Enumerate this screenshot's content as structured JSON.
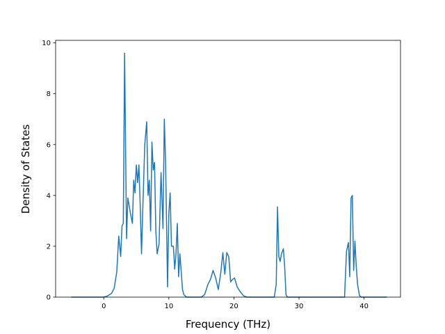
{
  "chart_data": {
    "type": "line",
    "title": "",
    "xlabel": "Frequency (THz)",
    "ylabel": "Density of States",
    "xlim": [
      -7.4,
      45.6
    ],
    "ylim": [
      0,
      10.1
    ],
    "xticks": [
      0,
      10,
      20,
      30,
      40
    ],
    "yticks": [
      0,
      2,
      4,
      6,
      8,
      10
    ],
    "grid": false,
    "series": [
      {
        "color": "#1f77b4",
        "x": [
          -5.0,
          0.0,
          0.6,
          1.2,
          1.6,
          2.0,
          2.3,
          2.6,
          2.8,
          3.0,
          3.2,
          3.5,
          3.7,
          3.9,
          4.1,
          4.4,
          4.6,
          4.8,
          5.0,
          5.2,
          5.4,
          5.6,
          5.8,
          6.0,
          6.3,
          6.6,
          6.8,
          7.0,
          7.2,
          7.4,
          7.6,
          7.8,
          8.0,
          8.2,
          8.5,
          8.8,
          9.1,
          9.3,
          9.5,
          9.8,
          10.0,
          10.2,
          10.4,
          10.7,
          10.9,
          11.1,
          11.3,
          11.5,
          11.7,
          11.9,
          12.1,
          12.3,
          12.5,
          12.7,
          13.0,
          13.4,
          15.0,
          15.5,
          16.0,
          16.4,
          16.8,
          17.2,
          17.6,
          18.0,
          18.3,
          18.6,
          18.9,
          19.2,
          19.5,
          19.8,
          20.1,
          20.5,
          21.0,
          21.5,
          22.0,
          26.2,
          26.5,
          26.7,
          26.9,
          27.1,
          27.3,
          27.6,
          27.8,
          28.0,
          28.2,
          37.0,
          37.3,
          37.6,
          37.8,
          38.0,
          38.2,
          38.4,
          38.6,
          38.8,
          39.0,
          39.3,
          39.6,
          43.5
        ],
        "y": [
          0,
          0,
          0.05,
          0.15,
          0.35,
          1.0,
          2.4,
          1.6,
          2.8,
          2.9,
          9.6,
          2.3,
          3.9,
          3.6,
          3.3,
          2.9,
          4.6,
          4.1,
          5.2,
          4.5,
          5.2,
          3.6,
          1.7,
          3.5,
          6.0,
          6.9,
          4.0,
          4.6,
          2.6,
          6.1,
          5.0,
          5.3,
          2.6,
          1.7,
          2.1,
          4.9,
          2.7,
          7.0,
          5.3,
          0.4,
          3.3,
          4.1,
          2.0,
          2.0,
          1.1,
          1.7,
          2.9,
          0.8,
          1.7,
          1.0,
          0.3,
          0.1,
          0.05,
          0.0,
          0,
          0,
          0,
          0.1,
          0.5,
          0.7,
          1.05,
          0.75,
          0.3,
          1.0,
          1.75,
          0.9,
          1.75,
          1.6,
          0.6,
          0.7,
          0.75,
          0.4,
          0.2,
          0.05,
          0,
          0,
          0.5,
          3.55,
          1.6,
          1.4,
          1.7,
          1.9,
          1.2,
          0.1,
          0,
          0,
          1.8,
          2.15,
          0.8,
          3.9,
          4.0,
          1.05,
          2.2,
          1.2,
          0.5,
          0.05,
          0,
          0
        ]
      }
    ]
  }
}
